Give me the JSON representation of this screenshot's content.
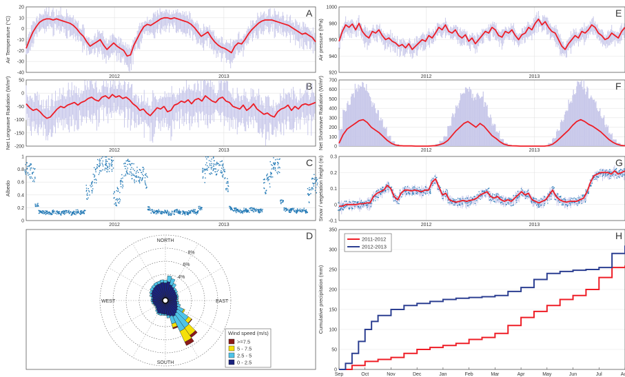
{
  "chart_data": [
    {
      "panel": "A",
      "type": "line",
      "ylabel": "Air Temperature (°C)",
      "ylim": [
        -40,
        20
      ],
      "yticks": [
        -40,
        -30,
        -20,
        -10,
        0,
        10,
        20
      ],
      "xlabels": [
        {
          "label": "2012",
          "pos": 0.305
        },
        {
          "label": "2013",
          "pos": 0.683
        }
      ],
      "xgrid": [
        0.305,
        0.683
      ],
      "series": [
        {
          "color": "#ee1c25",
          "values": [
            -18,
            -10,
            -3,
            2,
            6,
            8,
            9,
            9,
            8,
            9,
            8,
            7,
            6,
            5,
            3,
            0,
            -4,
            -7,
            -12,
            -16,
            -14,
            -12,
            -10,
            -15,
            -19,
            -16,
            -13,
            -16,
            -18,
            -20,
            -25,
            -24,
            -15,
            -9,
            -3,
            2,
            4,
            3,
            5,
            7,
            9,
            10,
            10,
            9,
            10,
            9,
            8,
            7,
            6,
            4,
            1,
            -3,
            -7,
            -5,
            -3,
            -8,
            -12,
            -15,
            -17,
            -18,
            -20,
            -22,
            -16,
            -13,
            -14,
            -10,
            -5,
            -1,
            2,
            5,
            7,
            8,
            8,
            8,
            7,
            6,
            5,
            4,
            3,
            1,
            -1,
            -3,
            -5,
            -4,
            -6,
            -8,
            -12
          ]
        }
      ]
    },
    {
      "panel": "B",
      "type": "line",
      "ylabel": "Net Longwave Radiation (W/m²)",
      "ylim": [
        -200,
        50
      ],
      "yticks": [
        -200,
        -150,
        -100,
        -50,
        0,
        50
      ],
      "xlabels": [
        {
          "label": "2012",
          "pos": 0.305
        },
        {
          "label": "2013",
          "pos": 0.683
        }
      ],
      "xgrid": [
        0.305,
        0.683
      ],
      "series": [
        {
          "color": "#ee1c25",
          "values": [
            -40,
            -55,
            -65,
            -60,
            -70,
            -85,
            -95,
            -90,
            -75,
            -60,
            -50,
            -55,
            -45,
            -40,
            -35,
            -45,
            -35,
            -30,
            -20,
            -15,
            -25,
            -30,
            -15,
            -10,
            -20,
            -5,
            -15,
            -10,
            -20,
            -15,
            -25,
            -40,
            -50,
            -65,
            -60,
            -75,
            -85,
            -70,
            -55,
            -60,
            -50,
            -70,
            -65,
            -45,
            -40,
            -30,
            -35,
            -25,
            -40,
            -25,
            -20,
            -30,
            -10,
            -20,
            -30,
            -35,
            -20,
            -15,
            -30,
            -35,
            -50,
            -55,
            -60,
            -45,
            -65,
            -55,
            -40,
            -60,
            -70,
            -80,
            -75,
            -85,
            -90,
            -70,
            -60,
            -55,
            -45,
            -65,
            -50,
            -60,
            -45,
            -40,
            -45,
            -40,
            -35
          ]
        }
      ]
    },
    {
      "panel": "C",
      "type": "scatter",
      "ylabel": "Albedo",
      "ylim": [
        0,
        1
      ],
      "yticks": [
        0,
        0.2,
        0.4,
        0.6,
        0.8,
        1
      ],
      "xlabels": [
        {
          "label": "2012",
          "pos": 0.305
        },
        {
          "label": "2013",
          "pos": 0.683
        }
      ],
      "xgrid": [
        0.305,
        0.683
      ],
      "series": [
        {
          "color": "#1f77b4",
          "values": [
            0.82,
            0.78,
            0.7,
            0.25,
            0.15,
            0.14,
            0.13,
            0.12,
            0.14,
            0.13,
            0.12,
            0.13,
            0.14,
            0.12,
            0.13,
            0.15,
            0.13,
            0.14,
            0.45,
            0.55,
            0.72,
            0.85,
            0.9,
            0.92,
            0.88,
            0.9,
            0.35,
            0.4,
            0.6,
            0.82,
            0.85,
            0.78,
            0.72,
            0.7,
            0.75,
            0.62,
            0.2,
            0.15,
            0.14,
            0.15,
            0.13,
            0.14,
            0.12,
            0.13,
            0.15,
            0.14,
            0.13,
            0.12,
            0.14,
            0.15,
            0.13,
            0.2,
            0.72,
            0.9,
            0.85,
            0.88,
            0.8,
            0.82,
            0.78,
            0.55,
            0.2,
            0.18,
            0.16,
            0.15,
            0.17,
            0.16,
            0.18,
            0.17,
            0.15,
            0.16,
            0.55,
            0.65,
            0.8,
            0.9,
            0.85,
            0.3,
            0.18,
            0.16,
            0.17,
            0.15,
            0.16,
            0.17,
            0.15,
            0.4,
            0.6,
            0.55
          ]
        }
      ]
    },
    {
      "panel": "D",
      "type": "polar-bar",
      "labels": {
        "north": "NORTH",
        "south": "SOUTH",
        "east": "EAST",
        "west": "WEST"
      },
      "rings": [
        "2%",
        "4%",
        "6%",
        "8%"
      ],
      "max_percent": 10,
      "legend_title": "Wind speed (m/s)",
      "bins": [
        {
          "label": ">=7.5",
          "color": "#8b1a1a"
        },
        {
          "label": "5 - 7.5",
          "color": "#f4e00a"
        },
        {
          "label": "2.5 - 5",
          "color": "#4fc3e8"
        },
        {
          "label": "0 - 2.5",
          "color": "#1a237e"
        }
      ],
      "directions_deg": [
        0,
        10,
        20,
        30,
        40,
        50,
        60,
        70,
        80,
        90,
        100,
        110,
        120,
        130,
        140,
        150,
        160,
        170,
        180,
        190,
        200,
        210,
        220,
        230,
        240,
        250,
        260,
        270,
        280,
        290,
        300,
        310,
        320,
        330,
        340,
        350
      ],
      "values_percent": [
        [
          2.2,
          0.4,
          0,
          0
        ],
        [
          2.4,
          0.9,
          0,
          0
        ],
        [
          2.0,
          1.0,
          0,
          0
        ],
        [
          1.8,
          0.6,
          0,
          0
        ],
        [
          1.6,
          0.3,
          0,
          0
        ],
        [
          1.5,
          0.3,
          0,
          0
        ],
        [
          1.4,
          0.2,
          0,
          0
        ],
        [
          1.4,
          0.2,
          0,
          0
        ],
        [
          1.3,
          0.2,
          0,
          0
        ],
        [
          1.2,
          0.2,
          0,
          0
        ],
        [
          1.3,
          0.3,
          0,
          0
        ],
        [
          1.4,
          0.5,
          0,
          0
        ],
        [
          1.6,
          1.0,
          0.2,
          0
        ],
        [
          1.8,
          2.0,
          0.6,
          0.1
        ],
        [
          2.0,
          2.6,
          1.4,
          0.4
        ],
        [
          2.2,
          2.5,
          1.8,
          0.6
        ],
        [
          2.0,
          1.2,
          0.6,
          0.2
        ],
        [
          1.8,
          0.4,
          0,
          0
        ],
        [
          1.6,
          0.2,
          0,
          0
        ],
        [
          1.6,
          0.2,
          0,
          0
        ],
        [
          1.6,
          0.3,
          0,
          0
        ],
        [
          1.7,
          0.2,
          0,
          0
        ],
        [
          1.5,
          0.2,
          0,
          0
        ],
        [
          1.3,
          0.1,
          0,
          0
        ],
        [
          1.2,
          0.1,
          0,
          0
        ],
        [
          1.3,
          0.1,
          0,
          0
        ],
        [
          1.4,
          0.2,
          0,
          0
        ],
        [
          1.5,
          0.2,
          0,
          0
        ],
        [
          1.5,
          0.2,
          0,
          0
        ],
        [
          1.7,
          0.3,
          0,
          0
        ],
        [
          1.9,
          0.3,
          0,
          0
        ],
        [
          2.0,
          0.4,
          0,
          0
        ],
        [
          2.1,
          0.4,
          0,
          0
        ],
        [
          2.2,
          0.4,
          0,
          0
        ],
        [
          2.2,
          0.4,
          0,
          0
        ],
        [
          2.3,
          0.4,
          0,
          0
        ]
      ]
    },
    {
      "panel": "E",
      "type": "line",
      "ylabel": "Air pressure (hPa)",
      "ylim": [
        920,
        1000
      ],
      "yticks": [
        920,
        940,
        960,
        980,
        1000
      ],
      "xlabels": [
        {
          "label": "2012",
          "pos": 0.305
        },
        {
          "label": "2013",
          "pos": 0.683
        }
      ],
      "xgrid": [
        0.305,
        0.683
      ],
      "series": [
        {
          "color": "#ee1c25",
          "values": [
            958,
            970,
            978,
            975,
            979,
            972,
            980,
            970,
            965,
            962,
            970,
            968,
            972,
            965,
            960,
            962,
            958,
            956,
            952,
            954,
            950,
            955,
            948,
            952,
            956,
            960,
            958,
            965,
            962,
            968,
            975,
            972,
            978,
            970,
            968,
            972,
            965,
            962,
            966,
            958,
            962,
            955,
            960,
            965,
            970,
            968,
            975,
            972,
            965,
            963,
            970,
            968,
            972,
            965,
            960,
            966,
            968,
            975,
            972,
            980,
            985,
            978,
            982,
            975,
            970,
            968,
            960,
            952,
            948,
            955,
            960,
            965,
            962,
            970,
            968,
            972,
            978,
            975,
            968,
            965,
            960,
            962,
            968,
            965,
            962,
            970,
            975
          ]
        }
      ]
    },
    {
      "panel": "F",
      "type": "line",
      "ylabel": "Net Shortwave Radiation (W/m²)",
      "ylim": [
        0,
        700
      ],
      "yticks": [
        0,
        100,
        200,
        300,
        400,
        500,
        600,
        700
      ],
      "xlabels": [
        {
          "label": "2012",
          "pos": 0.305
        },
        {
          "label": "2013",
          "pos": 0.683
        }
      ],
      "xgrid": [
        0.305,
        0.683
      ],
      "series": [
        {
          "color": "#ee1c25",
          "values": [
            30,
            120,
            180,
            210,
            240,
            270,
            280,
            250,
            200,
            170,
            140,
            100,
            60,
            30,
            12,
            5,
            2,
            2,
            2,
            0,
            0,
            0,
            0,
            2,
            5,
            15,
            30,
            60,
            110,
            160,
            200,
            240,
            260,
            230,
            200,
            240,
            210,
            160,
            110,
            80,
            45,
            20,
            8,
            3,
            2,
            0,
            0,
            0,
            0,
            0,
            0,
            0,
            5,
            20,
            50,
            90,
            130,
            170,
            220,
            260,
            280,
            260,
            230,
            210,
            180,
            150,
            110,
            70,
            40,
            20,
            8,
            3
          ]
        }
      ]
    },
    {
      "panel": "G",
      "type": "line",
      "ylabel": "Snow / vegetation height (m)",
      "ylim": [
        -0.1,
        0.3
      ],
      "yticks": [
        -0.1,
        0,
        0.1,
        0.2,
        0.3
      ],
      "xlabels": [
        {
          "label": "2012",
          "pos": 0.305
        },
        {
          "label": "2013",
          "pos": 0.683
        }
      ],
      "xgrid": [
        0.305,
        0.683
      ],
      "series": [
        {
          "color": "#ee1c25",
          "values": [
            -0.01,
            -0.01,
            0,
            0,
            0,
            0,
            0.005,
            0.005,
            0.01,
            0.01,
            0.05,
            0.07,
            0.08,
            0.09,
            0.12,
            0.1,
            0.05,
            0.03,
            0.07,
            0.09,
            0.09,
            0.085,
            0.09,
            0.085,
            0.08,
            0.09,
            0.09,
            0.14,
            0.16,
            0.11,
            0.06,
            0.07,
            0.03,
            0.02,
            0.015,
            0.02,
            0.025,
            0.02,
            0.025,
            0.03,
            0.04,
            0.06,
            0.07,
            0.08,
            0.05,
            0.04,
            0.05,
            0.03,
            0.02,
            0.03,
            0.02,
            0.04,
            0.06,
            0.08,
            0.06,
            0.07,
            0.03,
            0.02,
            0.01,
            0.02,
            0.03,
            0.06,
            0.09,
            0.05,
            0.03,
            0.02,
            0.015,
            0.02,
            0.02,
            0.02,
            0.03,
            0.04,
            0.08,
            0.14,
            0.18,
            0.19,
            0.2,
            0.2,
            0.2,
            0.19,
            0.21,
            0.19,
            0.2,
            0.21
          ]
        }
      ]
    },
    {
      "panel": "H",
      "type": "line",
      "ylabel": "Cumulative precipitation (mm)",
      "ylim": [
        0,
        350
      ],
      "yticks": [
        0,
        50,
        100,
        150,
        200,
        250,
        300,
        350
      ],
      "categories": [
        "Sep",
        "Oct",
        "Nov",
        "Dec",
        "Jan",
        "Feb",
        "Mar",
        "Apr",
        "May",
        "Jun",
        "Jul",
        "Aug"
      ],
      "legend": [
        "2011-2012",
        "2012-2013"
      ],
      "series": [
        {
          "name": "2011-2012",
          "color": "#ee1c25",
          "x": [
            0,
            0.5,
            1,
            1.5,
            2,
            2.5,
            3,
            3.5,
            4,
            4.5,
            5,
            5.5,
            6,
            6.5,
            7,
            7.5,
            8,
            8.5,
            9,
            9.5,
            10,
            10.5,
            11
          ],
          "values": [
            0,
            10,
            20,
            25,
            30,
            40,
            50,
            55,
            60,
            65,
            75,
            80,
            90,
            110,
            130,
            145,
            160,
            175,
            185,
            200,
            230,
            255,
            260
          ]
        },
        {
          "name": "2012-2013",
          "color": "#2b3e91",
          "x": [
            0,
            0.25,
            0.5,
            0.75,
            1,
            1.25,
            1.5,
            2,
            2.5,
            3,
            3.5,
            4,
            4.5,
            5,
            5.5,
            6,
            6.5,
            7,
            7.5,
            8,
            8.5,
            9,
            9.5,
            10,
            10.5,
            11
          ],
          "values": [
            0,
            15,
            40,
            70,
            100,
            120,
            135,
            150,
            160,
            165,
            170,
            175,
            178,
            180,
            182,
            185,
            195,
            205,
            225,
            240,
            245,
            248,
            250,
            255,
            290,
            310
          ]
        }
      ]
    }
  ]
}
